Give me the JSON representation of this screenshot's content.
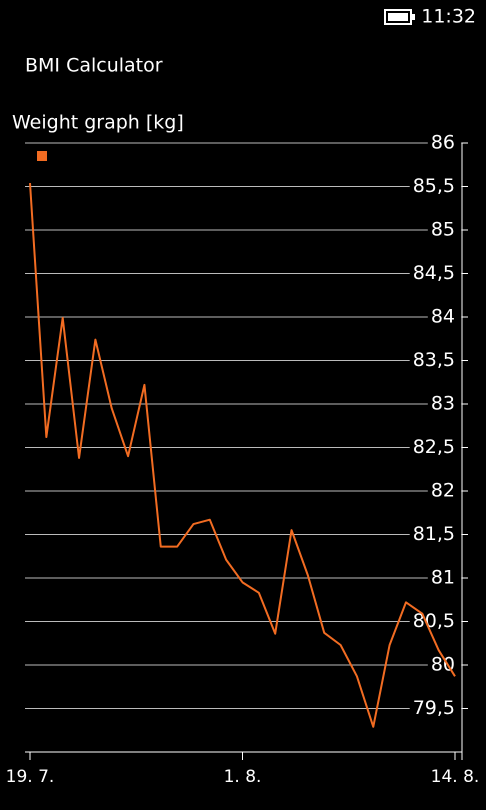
{
  "status_bar": {
    "time": "11:32"
  },
  "app": {
    "title": "BMI Calculator"
  },
  "chart_data": {
    "type": "line",
    "title": "Weight graph [kg]",
    "categories": [
      "19. 7.",
      null,
      null,
      null,
      null,
      null,
      null,
      null,
      null,
      null,
      null,
      null,
      null,
      "1. 8.",
      null,
      null,
      null,
      null,
      null,
      null,
      null,
      null,
      null,
      null,
      null,
      null,
      "14. 8."
    ],
    "series": [
      {
        "color": "#f26c22",
        "values": [
          85.54,
          82.62,
          83.99,
          82.38,
          83.74,
          82.95,
          82.4,
          83.22,
          81.36,
          81.36,
          81.62,
          81.67,
          81.21,
          80.95,
          80.83,
          80.36,
          81.55,
          81.03,
          80.37,
          80.23,
          79.87,
          79.29,
          80.23,
          80.72,
          80.59,
          80.17,
          79.87
        ]
      }
    ],
    "ylim": [
      79,
      86
    ],
    "yticks": [
      {
        "value": 79.5,
        "label": "79,5"
      },
      80,
      {
        "value": 80.5,
        "label": "80,5"
      },
      81,
      {
        "value": 81.5,
        "label": "81,5"
      },
      82,
      {
        "value": 82.5,
        "label": "82,5"
      },
      83,
      {
        "value": 83.5,
        "label": "83,5"
      },
      84,
      {
        "value": 84.5,
        "label": "84,5"
      },
      85,
      {
        "value": 85.5,
        "label": "85,5"
      },
      86
    ],
    "grid": true
  }
}
